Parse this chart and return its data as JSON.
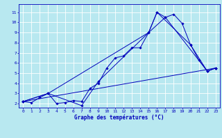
{
  "xlabel": "Graphe des températures (°C)",
  "xlim": [
    -0.5,
    23.5
  ],
  "ylim": [
    1.6,
    11.8
  ],
  "xticks": [
    0,
    1,
    2,
    3,
    4,
    5,
    6,
    7,
    8,
    9,
    10,
    11,
    12,
    13,
    14,
    15,
    16,
    17,
    18,
    19,
    20,
    21,
    22,
    23
  ],
  "yticks": [
    2,
    3,
    4,
    5,
    6,
    7,
    8,
    9,
    10,
    11
  ],
  "bg_color": "#b8e8f0",
  "line_color": "#0000bb",
  "grid_color": "#ffffff",
  "lines": [
    {
      "x": [
        0,
        1,
        2,
        3,
        4,
        5,
        6,
        7,
        8,
        9,
        10,
        11,
        12,
        13,
        14,
        15,
        16,
        17,
        18,
        19,
        20,
        21,
        22,
        23
      ],
      "y": [
        2.2,
        2.1,
        2.6,
        3.0,
        2.0,
        2.1,
        2.3,
        2.2,
        3.5,
        4.0,
        5.5,
        6.5,
        6.7,
        7.5,
        7.5,
        9.0,
        11.0,
        10.5,
        10.8,
        9.9,
        7.8,
        6.3,
        5.2,
        5.5
      ]
    },
    {
      "x": [
        0,
        3,
        7,
        9,
        15,
        16,
        20,
        22,
        23
      ],
      "y": [
        2.2,
        3.0,
        1.8,
        4.2,
        9.0,
        11.0,
        7.8,
        5.2,
        5.5
      ]
    },
    {
      "x": [
        0,
        3,
        15,
        17,
        22,
        23
      ],
      "y": [
        2.2,
        3.0,
        9.0,
        10.5,
        5.2,
        5.5
      ]
    },
    {
      "x": [
        0,
        23
      ],
      "y": [
        2.2,
        5.5
      ]
    }
  ]
}
